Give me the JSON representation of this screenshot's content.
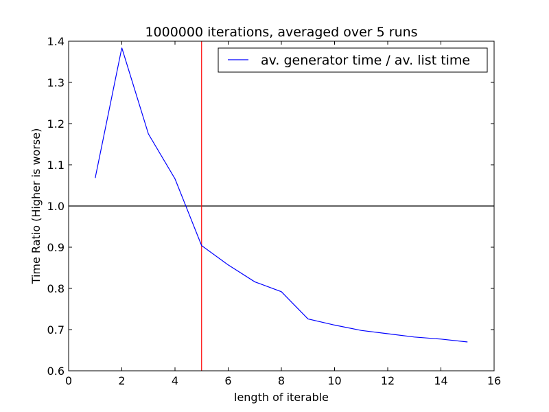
{
  "chart_data": {
    "type": "line",
    "title": "1000000 iterations, averaged over 5 runs",
    "xlabel": "length of iterable",
    "ylabel": "Time Ratio (Higher is worse)",
    "xlim": [
      0,
      16
    ],
    "ylim": [
      0.6,
      1.4
    ],
    "x_ticks": [
      "0",
      "2",
      "4",
      "6",
      "8",
      "10",
      "12",
      "14",
      "16"
    ],
    "y_ticks": [
      "0.6",
      "0.7",
      "0.8",
      "0.9",
      "1.0",
      "1.1",
      "1.2",
      "1.3",
      "1.4"
    ],
    "grid": false,
    "legend_position": "top-right",
    "series": [
      {
        "name": "av. generator time / av. list time",
        "color": "#0000ff",
        "x": [
          1,
          2,
          3,
          4,
          5,
          6,
          7,
          8,
          9,
          10,
          11,
          12,
          13,
          14,
          15
        ],
        "y": [
          1.068,
          1.384,
          1.175,
          1.066,
          0.904,
          0.857,
          0.816,
          0.792,
          0.726,
          0.711,
          0.698,
          0.69,
          0.682,
          0.677,
          0.67
        ]
      }
    ],
    "reference_lines": [
      {
        "orientation": "horizontal",
        "value": 1.0,
        "color": "#000000"
      },
      {
        "orientation": "vertical",
        "value": 5,
        "color": "#ff0000"
      }
    ]
  }
}
